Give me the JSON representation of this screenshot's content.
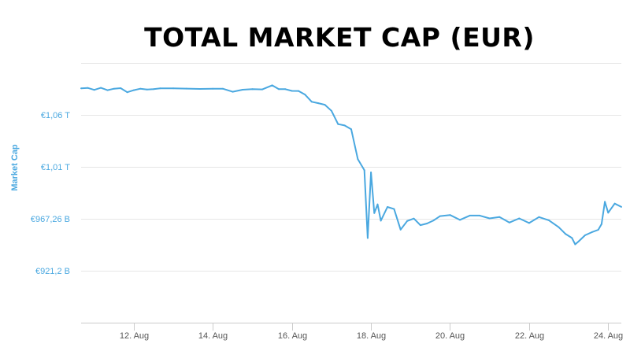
{
  "chart_data": {
    "type": "line",
    "title": "TOTAL MARKET CAP (EUR)",
    "xlabel": "",
    "ylabel": "Market Cap",
    "x_tick_labels": [
      "12. Aug",
      "14. Aug",
      "16. Aug",
      "18. Aug",
      "20. Aug",
      "22. Aug",
      "24. Aug"
    ],
    "y_tick_labels": [
      "€921,2 B",
      "€967,26 B",
      "€1,01 T",
      "€1,06 T"
    ],
    "y_tick_values": [
      921.2,
      967.26,
      1013.32,
      1059.38
    ],
    "ylim": [
      875.14,
      1105.44
    ],
    "xlim": [
      "2019-08-10T16:00",
      "2019-08-24T08:00"
    ],
    "grid": true,
    "line_color": "#4aa8e0",
    "series": [
      {
        "x": [
          "2019-08-10T16:00",
          "2019-08-10T20:00",
          "2019-08-11T00:00",
          "2019-08-11T04:00",
          "2019-08-11T08:00",
          "2019-08-11T12:00",
          "2019-08-11T16:00",
          "2019-08-11T20:00",
          "2019-08-12T00:00",
          "2019-08-12T04:00",
          "2019-08-12T08:00",
          "2019-08-12T12:00",
          "2019-08-12T16:00",
          "2019-08-13T00:00",
          "2019-08-13T08:00",
          "2019-08-13T16:00",
          "2019-08-14T00:00",
          "2019-08-14T06:00",
          "2019-08-14T12:00",
          "2019-08-14T18:00",
          "2019-08-15T00:00",
          "2019-08-15T06:00",
          "2019-08-15T12:00",
          "2019-08-15T16:00",
          "2019-08-15T20:00",
          "2019-08-16T00:00",
          "2019-08-16T04:00",
          "2019-08-16T08:00",
          "2019-08-16T12:00",
          "2019-08-16T16:00",
          "2019-08-16T20:00",
          "2019-08-17T00:00",
          "2019-08-17T04:00",
          "2019-08-17T08:00",
          "2019-08-17T12:00",
          "2019-08-17T16:00",
          "2019-08-17T20:00",
          "2019-08-17T22:00",
          "2019-08-18T00:00",
          "2019-08-18T02:00",
          "2019-08-18T04:00",
          "2019-08-18T06:00",
          "2019-08-18T10:00",
          "2019-08-18T14:00",
          "2019-08-18T18:00",
          "2019-08-18T22:00",
          "2019-08-19T02:00",
          "2019-08-19T06:00",
          "2019-08-19T10:00",
          "2019-08-19T14:00",
          "2019-08-19T18:00",
          "2019-08-20T00:00",
          "2019-08-20T06:00",
          "2019-08-20T12:00",
          "2019-08-20T18:00",
          "2019-08-21T00:00",
          "2019-08-21T06:00",
          "2019-08-21T12:00",
          "2019-08-21T18:00",
          "2019-08-22T00:00",
          "2019-08-22T06:00",
          "2019-08-22T12:00",
          "2019-08-22T18:00",
          "2019-08-22T22:00",
          "2019-08-23T02:00",
          "2019-08-23T04:00",
          "2019-08-23T06:00",
          "2019-08-23T10:00",
          "2019-08-23T14:00",
          "2019-08-23T18:00",
          "2019-08-23T20:00",
          "2019-08-23T22:00",
          "2019-08-24T00:00",
          "2019-08-24T04:00",
          "2019-08-24T08:00"
        ],
        "values": [
          1083.0,
          1083.3,
          1081.6,
          1083.4,
          1081.3,
          1082.6,
          1083.1,
          1079.5,
          1081.3,
          1082.6,
          1081.9,
          1082.3,
          1083.0,
          1082.9,
          1082.7,
          1082.4,
          1082.6,
          1082.6,
          1079.9,
          1081.7,
          1082.3,
          1082.0,
          1085.6,
          1082.2,
          1082.2,
          1080.7,
          1080.6,
          1077.3,
          1071.0,
          1069.8,
          1068.4,
          1063.0,
          1051.2,
          1050.0,
          1046.6,
          1020.1,
          1010.3,
          950.2,
          1008.4,
          972.3,
          980.0,
          965.6,
          977.7,
          975.9,
          957.6,
          965.3,
          967.5,
          961.6,
          963.1,
          965.8,
          969.6,
          970.6,
          966.3,
          970.1,
          970.1,
          967.6,
          968.9,
          963.9,
          967.6,
          963.5,
          968.8,
          965.9,
          959.8,
          953.9,
          950.2,
          944.6,
          947.1,
          952.7,
          955.3,
          957.5,
          962.6,
          982.3,
          972.6,
          980.7,
          977.8
        ]
      }
    ]
  }
}
